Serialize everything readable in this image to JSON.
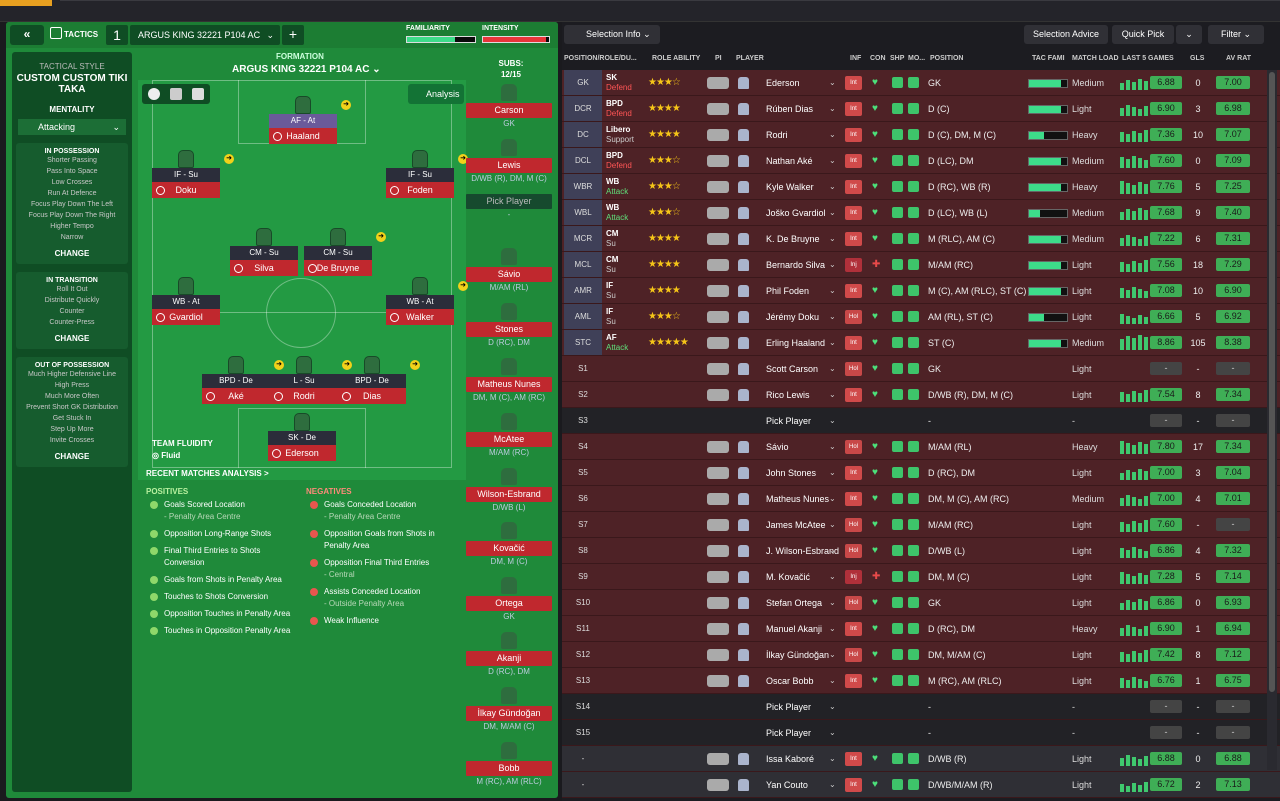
{
  "header": {
    "tactics_label": "TACTICS",
    "tactic_number": "1",
    "tactic_name": "ARGUS KING 32221 P104 AC",
    "familiarity_label": "FAMILIARITY",
    "intensity_label": "INTENSITY",
    "familiarity_fill": 0.7,
    "intensity_fill": 0.95
  },
  "sidebar": {
    "title": "TACTICAL STYLE",
    "style_name": "CUSTOM CUSTOM TIKI TAKA",
    "mentality_label": "MENTALITY",
    "mentality_value": "Attacking",
    "in_possession": {
      "title": "IN POSSESSION",
      "items": [
        "Shorter Passing",
        "Pass Into Space",
        "Low Crosses",
        "Run At Defence",
        "Focus Play Down The Left",
        "Focus Play Down The Right",
        "Higher Tempo",
        "Narrow"
      ],
      "change": "CHANGE"
    },
    "in_transition": {
      "title": "IN TRANSITION",
      "items": [
        "Roll It Out",
        "Distribute Quickly",
        "Counter",
        "Counter-Press"
      ],
      "change": "CHANGE"
    },
    "out_of_possession": {
      "title": "OUT OF POSSESSION",
      "items": [
        "Much Higher Defensive Line",
        "High Press",
        "Much More Often",
        "Prevent Short GK Distribution",
        "Get Stuck In",
        "Step Up More",
        "Invite Crosses"
      ],
      "change": "CHANGE"
    }
  },
  "formation": {
    "label": "FORMATION",
    "name": "ARGUS KING 32221 P104 AC",
    "analysis": "Analysis",
    "fluidity_label": "TEAM FLUIDITY",
    "fluidity_value": "Fluid"
  },
  "pitch_players": [
    {
      "role": "AF - At",
      "name": "Haaland"
    },
    {
      "role": "IF - Su",
      "name": "Doku"
    },
    {
      "role": "IF - Su",
      "name": "Foden"
    },
    {
      "role": "CM - Su",
      "name": "Silva"
    },
    {
      "role": "CM - Su",
      "name": "De Bruyne"
    },
    {
      "role": "WB - At",
      "name": "Gvardiol"
    },
    {
      "role": "WB - At",
      "name": "Walker"
    },
    {
      "role": "BPD - De",
      "name": "Aké"
    },
    {
      "role": "L - Su",
      "name": "Rodri"
    },
    {
      "role": "BPD - De",
      "name": "Dias"
    },
    {
      "role": "SK - De",
      "name": "Ederson"
    }
  ],
  "subs": {
    "label": "SUBS:",
    "count": "12/15",
    "list": [
      {
        "name": "Carson",
        "pos": "GK"
      },
      {
        "name": "Lewis",
        "pos": "D/WB (R), DM, M (C)"
      },
      {
        "name": "Pick Player",
        "pos": "-"
      },
      {
        "name": "Sávio",
        "pos": "M/AM (RL)"
      },
      {
        "name": "Stones",
        "pos": "D (RC), DM"
      },
      {
        "name": "Matheus Nunes",
        "pos": "DM, M (C), AM (RC)"
      },
      {
        "name": "McAtee",
        "pos": "M/AM (RC)"
      },
      {
        "name": "Wilson-Esbrand",
        "pos": "D/WB (L)"
      },
      {
        "name": "Kovačić",
        "pos": "DM, M (C)"
      },
      {
        "name": "Ortega",
        "pos": "GK"
      },
      {
        "name": "Akanji",
        "pos": "D (RC), DM"
      },
      {
        "name": "İlkay Gündoğan",
        "pos": "DM, M/AM (C)"
      },
      {
        "name": "Bobb",
        "pos": "M (RC), AM (RLC)"
      }
    ]
  },
  "analysis": {
    "title": "RECENT MATCHES ANALYSIS >",
    "positives_label": "POSITIVES",
    "negatives_label": "NEGATIVES",
    "positives": [
      {
        "text": "Goals Scored Location",
        "sub": "- Penalty Area Centre"
      },
      {
        "text": "Opposition Long-Range Shots",
        "sub": ""
      },
      {
        "text": "Final Third Entries to Shots Conversion",
        "sub": ""
      },
      {
        "text": "Goals from Shots in Penalty Area",
        "sub": ""
      },
      {
        "text": "Touches to Shots Conversion",
        "sub": ""
      },
      {
        "text": "Opposition Touches in Penalty Area",
        "sub": ""
      },
      {
        "text": "Touches in Opposition Penalty Area",
        "sub": ""
      }
    ],
    "negatives": [
      {
        "text": "Goals Conceded Location",
        "sub": "- Penalty Area Centre"
      },
      {
        "text": "Opposition Goals from Shots in Penalty Area",
        "sub": ""
      },
      {
        "text": "Opposition Final Third Entries",
        "sub": "- Central"
      },
      {
        "text": "Assists Conceded Location",
        "sub": "- Outside Penalty Area"
      },
      {
        "text": "Weak Influence",
        "sub": ""
      }
    ]
  },
  "toolbar": {
    "selection_info": "Selection Info",
    "selection_advice": "Selection Advice",
    "quick_pick": "Quick Pick",
    "filter": "Filter"
  },
  "columns": {
    "pos": "POSITION/ROLE/DU...",
    "ability": "ROLE ABILITY",
    "pi": "PI",
    "player": "PLAYER",
    "inf": "INF",
    "con": "CON",
    "shp": "SHP",
    "mo": "MO...",
    "position": "POSITION",
    "tac": "TAC FAMI",
    "load": "MATCH LOAD",
    "last5": "LAST 5 GAMES",
    "gls": "GLS",
    "avr": "AV RAT"
  },
  "rows": [
    {
      "pos": "GK",
      "role": "SK",
      "duty": "Defend",
      "dc": "def",
      "stars": "★★★☆",
      "name": "Ederson",
      "inf": "Int",
      "position": "GK",
      "tac": 0.85,
      "load": "Medium",
      "avg": "6.88",
      "gls": "0",
      "avr": "7.00"
    },
    {
      "pos": "DCR",
      "role": "BPD",
      "duty": "Defend",
      "dc": "def",
      "stars": "★★★★",
      "name": "Rúben Dias",
      "inf": "Int",
      "position": "D (C)",
      "tac": 0.85,
      "load": "Light",
      "avg": "6.90",
      "gls": "3",
      "avr": "6.98"
    },
    {
      "pos": "DC",
      "role": "Libero",
      "duty": "Support",
      "dc": "su",
      "stars": "★★★★",
      "name": "Rodri",
      "inf": "Int",
      "position": "D (C), DM, M (C)",
      "tac": 0.4,
      "load": "Heavy",
      "avg": "7.36",
      "gls": "10",
      "avr": "7.07"
    },
    {
      "pos": "DCL",
      "role": "BPD",
      "duty": "Defend",
      "dc": "def",
      "stars": "★★★☆",
      "name": "Nathan Aké",
      "inf": "Int",
      "position": "D (LC), DM",
      "tac": 0.85,
      "load": "Medium",
      "avg": "7.60",
      "gls": "0",
      "avr": "7.09"
    },
    {
      "pos": "WBR",
      "role": "WB",
      "duty": "Attack",
      "dc": "att",
      "stars": "★★★☆",
      "name": "Kyle Walker",
      "inf": "Int",
      "position": "D (RC), WB (R)",
      "tac": 0.85,
      "load": "Heavy",
      "avg": "7.76",
      "gls": "5",
      "avr": "7.25"
    },
    {
      "pos": "WBL",
      "role": "WB",
      "duty": "Attack",
      "dc": "att",
      "stars": "★★★☆",
      "name": "Joško Gvardiol",
      "inf": "Int",
      "position": "D (LC), WB (L)",
      "tac": 0.3,
      "load": "Medium",
      "avg": "7.68",
      "gls": "9",
      "avr": "7.40"
    },
    {
      "pos": "MCR",
      "role": "CM",
      "duty": "Su",
      "dc": "su",
      "stars": "★★★★",
      "name": "K. De Bruyne",
      "inf": "Int",
      "position": "M (RLC), AM (C)",
      "tac": 0.85,
      "load": "Medium",
      "avg": "7.22",
      "gls": "6",
      "avr": "7.31"
    },
    {
      "pos": "MCL",
      "role": "CM",
      "duty": "Su",
      "dc": "su",
      "stars": "★★★★",
      "name": "Bernardo Silva",
      "inf": "Inj",
      "position": "M/AM (RC)",
      "tac": 0.85,
      "load": "Light",
      "avg": "7.56",
      "gls": "18",
      "avr": "7.29"
    },
    {
      "pos": "AMR",
      "role": "IF",
      "duty": "Su",
      "dc": "su",
      "stars": "★★★★",
      "name": "Phil Foden",
      "inf": "Int",
      "position": "M (C), AM (RLC), ST (C)",
      "tac": 0.85,
      "load": "Light",
      "avg": "7.08",
      "gls": "10",
      "avr": "6.90"
    },
    {
      "pos": "AML",
      "role": "IF",
      "duty": "Su",
      "dc": "su",
      "stars": "★★★☆",
      "name": "Jérémy Doku",
      "inf": "Hol",
      "position": "AM (RL), ST (C)",
      "tac": 0.4,
      "load": "Light",
      "avg": "6.66",
      "gls": "5",
      "avr": "6.92"
    },
    {
      "pos": "STC",
      "role": "AF",
      "duty": "Attack",
      "dc": "att",
      "stars": "★★★★★",
      "name": "Erling Haaland",
      "inf": "Int",
      "position": "ST (C)",
      "tac": 0.85,
      "load": "Medium",
      "avg": "8.86",
      "gls": "105",
      "avr": "8.38"
    },
    {
      "pos": "S1",
      "role": "",
      "duty": "",
      "dc": "",
      "stars": "",
      "name": "Scott Carson",
      "inf": "Hol",
      "position": "GK",
      "tac": 0,
      "load": "Light",
      "avg": "-",
      "gls": "-",
      "avr": "-"
    },
    {
      "pos": "S2",
      "role": "",
      "duty": "",
      "dc": "",
      "stars": "",
      "name": "Rico Lewis",
      "inf": "Int",
      "position": "D/WB (R), DM, M (C)",
      "tac": 0,
      "load": "Light",
      "avg": "7.54",
      "gls": "8",
      "avr": "7.34"
    },
    {
      "pos": "S3",
      "role": "",
      "duty": "",
      "dc": "",
      "stars": "",
      "name": "Pick Player",
      "inf": "",
      "position": "-",
      "tac": 0,
      "load": "-",
      "avg": "-",
      "gls": "-",
      "avr": "-"
    },
    {
      "pos": "S4",
      "role": "",
      "duty": "",
      "dc": "",
      "stars": "",
      "name": "Sávio",
      "inf": "Hol",
      "position": "M/AM (RL)",
      "tac": 0,
      "load": "Heavy",
      "avg": "7.80",
      "gls": "17",
      "avr": "7.34"
    },
    {
      "pos": "S5",
      "role": "",
      "duty": "",
      "dc": "",
      "stars": "",
      "name": "John Stones",
      "inf": "Int",
      "position": "D (RC), DM",
      "tac": 0,
      "load": "Light",
      "avg": "7.00",
      "gls": "3",
      "avr": "7.04"
    },
    {
      "pos": "S6",
      "role": "",
      "duty": "",
      "dc": "",
      "stars": "",
      "name": "Matheus Nunes",
      "inf": "Int",
      "position": "DM, M (C), AM (RC)",
      "tac": 0,
      "load": "Medium",
      "avg": "7.00",
      "gls": "4",
      "avr": "7.01"
    },
    {
      "pos": "S7",
      "role": "",
      "duty": "",
      "dc": "",
      "stars": "",
      "name": "James McAtee",
      "inf": "Hol",
      "position": "M/AM (RC)",
      "tac": 0,
      "load": "Light",
      "avg": "7.60",
      "gls": "-",
      "avr": "-"
    },
    {
      "pos": "S8",
      "role": "",
      "duty": "",
      "dc": "",
      "stars": "",
      "name": "J. Wilson-Esbrand",
      "inf": "Hol",
      "position": "D/WB (L)",
      "tac": 0,
      "load": "Light",
      "avg": "6.86",
      "gls": "4",
      "avr": "7.32"
    },
    {
      "pos": "S9",
      "role": "",
      "duty": "",
      "dc": "",
      "stars": "",
      "name": "M. Kovačić",
      "inf": "Inj",
      "position": "DM, M (C)",
      "tac": 0,
      "load": "Light",
      "avg": "7.28",
      "gls": "5",
      "avr": "7.14"
    },
    {
      "pos": "S10",
      "role": "",
      "duty": "",
      "dc": "",
      "stars": "",
      "name": "Stefan Ortega",
      "inf": "Hol",
      "position": "GK",
      "tac": 0,
      "load": "Light",
      "avg": "6.86",
      "gls": "0",
      "avr": "6.93"
    },
    {
      "pos": "S11",
      "role": "",
      "duty": "",
      "dc": "",
      "stars": "",
      "name": "Manuel Akanji",
      "inf": "Int",
      "position": "D (RC), DM",
      "tac": 0,
      "load": "Heavy",
      "avg": "6.90",
      "gls": "1",
      "avr": "6.94"
    },
    {
      "pos": "S12",
      "role": "",
      "duty": "",
      "dc": "",
      "stars": "",
      "name": "İlkay Gündoğan",
      "inf": "Hol",
      "position": "DM, M/AM (C)",
      "tac": 0,
      "load": "Light",
      "avg": "7.42",
      "gls": "8",
      "avr": "7.12"
    },
    {
      "pos": "S13",
      "role": "",
      "duty": "",
      "dc": "",
      "stars": "",
      "name": "Oscar Bobb",
      "inf": "Int",
      "position": "M (RC), AM (RLC)",
      "tac": 0,
      "load": "Light",
      "avg": "6.76",
      "gls": "1",
      "avr": "6.75"
    },
    {
      "pos": "S14",
      "role": "",
      "duty": "",
      "dc": "",
      "stars": "",
      "name": "Pick Player",
      "inf": "",
      "position": "-",
      "tac": 0,
      "load": "-",
      "avg": "-",
      "gls": "-",
      "avr": "-"
    },
    {
      "pos": "S15",
      "role": "",
      "duty": "",
      "dc": "",
      "stars": "",
      "name": "Pick Player",
      "inf": "",
      "position": "-",
      "tac": 0,
      "load": "-",
      "avg": "-",
      "gls": "-",
      "avr": "-"
    },
    {
      "pos": "-",
      "role": "",
      "duty": "",
      "dc": "",
      "stars": "",
      "name": "Issa Kaboré",
      "inf": "Int",
      "position": "D/WB (R)",
      "tac": 0,
      "load": "Light",
      "avg": "6.88",
      "gls": "0",
      "avr": "6.88"
    },
    {
      "pos": "-",
      "role": "",
      "duty": "",
      "dc": "",
      "stars": "",
      "name": "Yan Couto",
      "inf": "Int",
      "position": "D/WB/M/AM (R)",
      "tac": 0,
      "load": "Light",
      "avg": "6.72",
      "gls": "2",
      "avr": "7.13"
    }
  ]
}
